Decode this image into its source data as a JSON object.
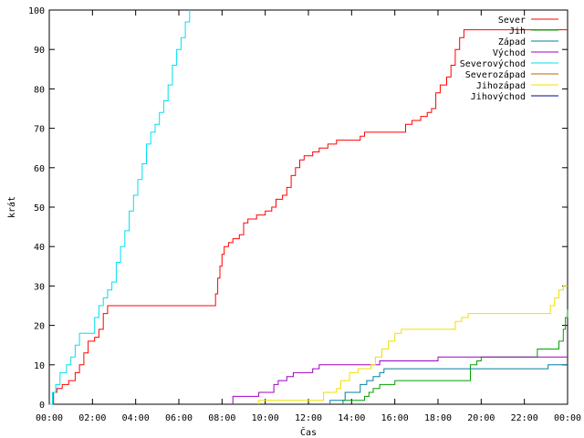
{
  "chart_data": {
    "type": "line",
    "title": "",
    "xlabel": "Čas",
    "ylabel": "krát",
    "ylim": [
      0,
      100
    ],
    "xlim": [
      "00:00",
      "24:00"
    ],
    "x_tick_labels": [
      "00:00",
      "02:00",
      "04:00",
      "06:00",
      "08:00",
      "10:00",
      "12:00",
      "14:00",
      "16:00",
      "18:00",
      "20:00",
      "22:00",
      "00:00"
    ],
    "y_tick_labels": [
      "0",
      "10",
      "20",
      "30",
      "40",
      "50",
      "60",
      "70",
      "80",
      "90",
      "100"
    ],
    "grid": false,
    "legend_position": "top-right",
    "line_style": "step",
    "x_unit_note": "x values are hours of day (0-24)",
    "series": [
      {
        "name": "Sever",
        "color": "#ff0000",
        "points": [
          [
            0.0,
            0
          ],
          [
            0.2,
            3
          ],
          [
            0.35,
            4
          ],
          [
            0.6,
            5
          ],
          [
            0.9,
            6
          ],
          [
            1.2,
            8
          ],
          [
            1.4,
            10
          ],
          [
            1.6,
            13
          ],
          [
            1.8,
            16
          ],
          [
            2.1,
            17
          ],
          [
            2.3,
            19
          ],
          [
            2.5,
            23
          ],
          [
            2.7,
            25
          ],
          [
            7.6,
            25
          ],
          [
            7.7,
            28
          ],
          [
            7.8,
            32
          ],
          [
            7.9,
            35
          ],
          [
            8.0,
            38
          ],
          [
            8.1,
            40
          ],
          [
            8.3,
            41
          ],
          [
            8.5,
            42
          ],
          [
            8.8,
            43
          ],
          [
            9.0,
            46
          ],
          [
            9.2,
            47
          ],
          [
            9.6,
            48
          ],
          [
            10.0,
            49
          ],
          [
            10.3,
            50
          ],
          [
            10.5,
            52
          ],
          [
            10.8,
            53
          ],
          [
            11.0,
            55
          ],
          [
            11.2,
            58
          ],
          [
            11.4,
            60
          ],
          [
            11.6,
            62
          ],
          [
            11.8,
            63
          ],
          [
            12.2,
            64
          ],
          [
            12.5,
            65
          ],
          [
            12.9,
            66
          ],
          [
            13.3,
            67
          ],
          [
            14.4,
            68
          ],
          [
            14.6,
            69
          ],
          [
            16.4,
            69
          ],
          [
            16.5,
            71
          ],
          [
            16.8,
            72
          ],
          [
            17.2,
            73
          ],
          [
            17.5,
            74
          ],
          [
            17.7,
            75
          ],
          [
            17.9,
            79
          ],
          [
            18.1,
            81
          ],
          [
            18.4,
            83
          ],
          [
            18.6,
            86
          ],
          [
            18.8,
            90
          ],
          [
            19.0,
            93
          ],
          [
            19.2,
            95
          ],
          [
            24.0,
            95
          ]
        ]
      },
      {
        "name": "Jih",
        "color": "#00a000",
        "points": [
          [
            13.6,
            0
          ],
          [
            13.6,
            1
          ],
          [
            14.4,
            1
          ],
          [
            14.6,
            2
          ],
          [
            14.8,
            3
          ],
          [
            15.0,
            4
          ],
          [
            15.3,
            5
          ],
          [
            16.0,
            6
          ],
          [
            19.3,
            6
          ],
          [
            19.5,
            10
          ],
          [
            19.8,
            11
          ],
          [
            20.0,
            12
          ],
          [
            22.4,
            12
          ],
          [
            22.6,
            14
          ],
          [
            23.4,
            14
          ],
          [
            23.6,
            16
          ],
          [
            23.8,
            19
          ],
          [
            23.9,
            22
          ],
          [
            24.0,
            24
          ]
        ]
      },
      {
        "name": "Západ",
        "color": "#0080a0",
        "points": [
          [
            13.0,
            0
          ],
          [
            13.0,
            1
          ],
          [
            13.5,
            1
          ],
          [
            13.7,
            3
          ],
          [
            14.2,
            3
          ],
          [
            14.4,
            5
          ],
          [
            14.7,
            6
          ],
          [
            15.0,
            7
          ],
          [
            15.3,
            8
          ],
          [
            15.5,
            9
          ],
          [
            23.0,
            9
          ],
          [
            23.1,
            10
          ],
          [
            24.0,
            10
          ]
        ]
      },
      {
        "name": "Východ",
        "color": "#a000c0",
        "points": [
          [
            8.5,
            0
          ],
          [
            8.5,
            2
          ],
          [
            9.5,
            2
          ],
          [
            9.7,
            3
          ],
          [
            10.2,
            3
          ],
          [
            10.4,
            5
          ],
          [
            10.6,
            6
          ],
          [
            11.0,
            7
          ],
          [
            11.3,
            8
          ],
          [
            12.0,
            8
          ],
          [
            12.2,
            9
          ],
          [
            12.5,
            10
          ],
          [
            15.2,
            10
          ],
          [
            15.3,
            11
          ],
          [
            17.8,
            11
          ],
          [
            18.0,
            12
          ],
          [
            24.0,
            12
          ]
        ]
      },
      {
        "name": "Severovýchod",
        "color": "#00e0f0",
        "points": [
          [
            0.0,
            0
          ],
          [
            0.15,
            3
          ],
          [
            0.3,
            5
          ],
          [
            0.5,
            8
          ],
          [
            0.8,
            10
          ],
          [
            1.0,
            12
          ],
          [
            1.2,
            15
          ],
          [
            1.4,
            18
          ],
          [
            1.9,
            18
          ],
          [
            2.1,
            22
          ],
          [
            2.3,
            25
          ],
          [
            2.5,
            27
          ],
          [
            2.7,
            29
          ],
          [
            2.9,
            31
          ],
          [
            3.1,
            36
          ],
          [
            3.3,
            40
          ],
          [
            3.5,
            44
          ],
          [
            3.7,
            49
          ],
          [
            3.9,
            53
          ],
          [
            4.1,
            57
          ],
          [
            4.3,
            61
          ],
          [
            4.5,
            66
          ],
          [
            4.7,
            69
          ],
          [
            4.9,
            71
          ],
          [
            5.1,
            74
          ],
          [
            5.3,
            77
          ],
          [
            5.5,
            81
          ],
          [
            5.7,
            86
          ],
          [
            5.9,
            90
          ],
          [
            6.1,
            93
          ],
          [
            6.3,
            97
          ],
          [
            6.5,
            100
          ]
        ]
      },
      {
        "name": "Severozápad",
        "color": "#c06000",
        "points": []
      },
      {
        "name": "Jihozápad",
        "color": "#f0e000",
        "points": [
          [
            9.7,
            0
          ],
          [
            9.7,
            1
          ],
          [
            12.5,
            1
          ],
          [
            12.7,
            3
          ],
          [
            13.3,
            4
          ],
          [
            13.5,
            6
          ],
          [
            13.9,
            8
          ],
          [
            14.3,
            9
          ],
          [
            14.9,
            10
          ],
          [
            15.1,
            12
          ],
          [
            15.4,
            14
          ],
          [
            15.7,
            16
          ],
          [
            16.0,
            18
          ],
          [
            16.3,
            19
          ],
          [
            18.6,
            19
          ],
          [
            18.8,
            21
          ],
          [
            19.1,
            22
          ],
          [
            19.4,
            23
          ],
          [
            23.0,
            23
          ],
          [
            23.2,
            25
          ],
          [
            23.4,
            27
          ],
          [
            23.6,
            29
          ],
          [
            23.8,
            30
          ],
          [
            24.0,
            30
          ]
        ]
      },
      {
        "name": "Jihovýchod",
        "color": "#0000a0",
        "points": []
      }
    ]
  }
}
